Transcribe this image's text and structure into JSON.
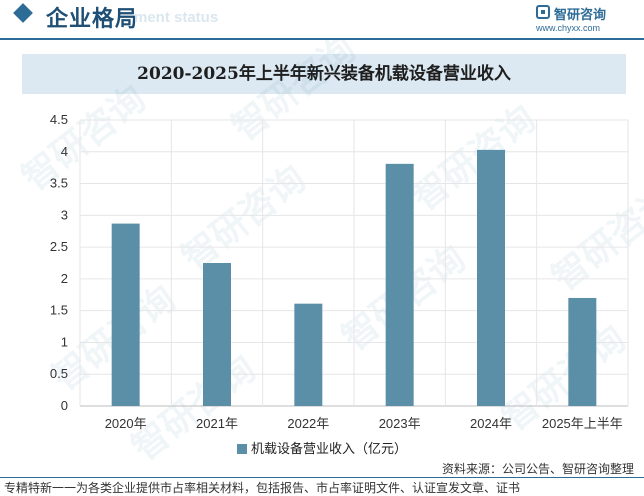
{
  "header": {
    "title": "企业格局",
    "ghost_text": "ment status",
    "logo_name": "智研咨询",
    "logo_url": "www.chyxx.com"
  },
  "watermark_text": "智研咨询",
  "colors": {
    "brand": "#2e6c98",
    "bar": "#5b8fa7",
    "title_bg": "#dce9f2"
  },
  "chart_data": {
    "type": "bar",
    "title": "2020-2025年上半年新兴装备机载设备营业收入",
    "categories": [
      "2020年",
      "2021年",
      "2022年",
      "2023年",
      "2024年",
      "2025年上半年"
    ],
    "series": [
      {
        "name": "机载设备营业收入（亿元）",
        "values": [
          2.87,
          2.25,
          1.61,
          3.81,
          4.03,
          1.7
        ]
      }
    ],
    "yticks": [
      "0",
      "0.5",
      "1",
      "1.5",
      "2",
      "2.5",
      "3",
      "3.5",
      "4",
      "4.5"
    ],
    "ylim": [
      0,
      4.5
    ],
    "grid": true,
    "legend": "bottom"
  },
  "source": "资料来源：公司公告、智研咨询整理",
  "footer": "专精特新一一为各类企业提供市占率相关材料，包括报告、市占率证明文件、认证宣发文章、证书"
}
